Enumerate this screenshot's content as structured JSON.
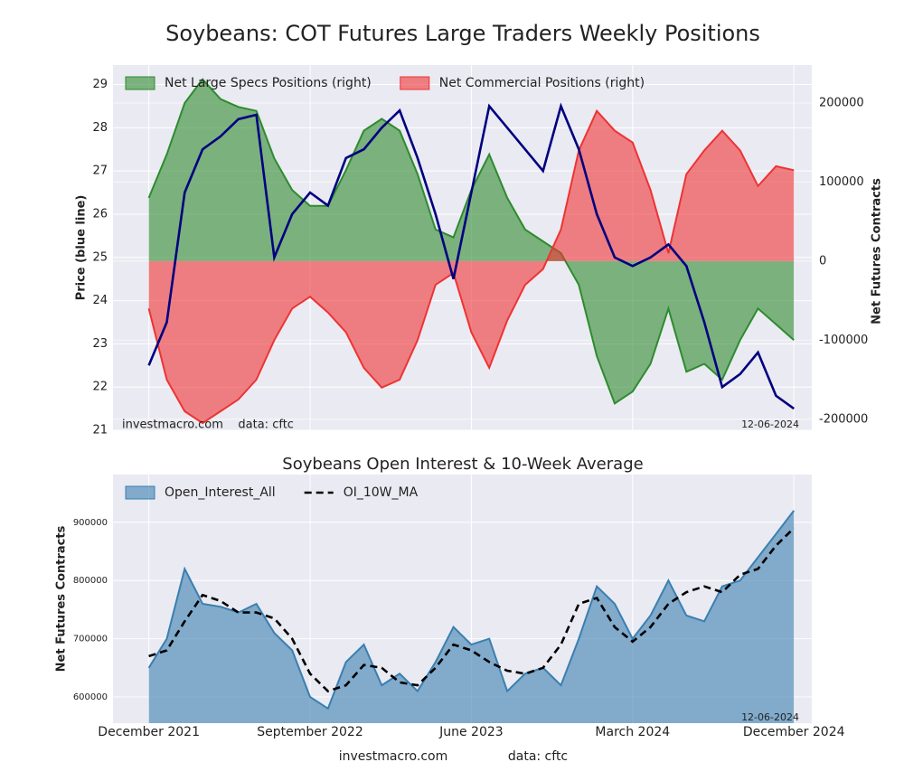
{
  "chart_data": [
    {
      "type": "area",
      "title": "Soybeans: COT Futures Large Traders Weekly Positions",
      "ylabel": "Price (blue line)",
      "y2label": "Net Futures Contracts",
      "annotation_left": "investmacro.com    data: cftc",
      "annotation_right": "12-06-2024",
      "legend": "upper left",
      "grid": true,
      "x": [
        "2021-12",
        "2022-01",
        "2022-02",
        "2022-03",
        "2022-04",
        "2022-05",
        "2022-06",
        "2022-07",
        "2022-08",
        "2022-09",
        "2022-10",
        "2022-11",
        "2022-12",
        "2023-01",
        "2023-02",
        "2023-03",
        "2023-04",
        "2023-05",
        "2023-06",
        "2023-07",
        "2023-08",
        "2023-09",
        "2023-10",
        "2023-11",
        "2023-12",
        "2024-01",
        "2024-02",
        "2024-03",
        "2024-04",
        "2024-05",
        "2024-06",
        "2024-07",
        "2024-08",
        "2024-09",
        "2024-10",
        "2024-11",
        "2024-12"
      ],
      "xlim": [
        "2021-10",
        "2025-01"
      ],
      "ylim": [
        21,
        29.45
      ],
      "yticks": [
        21,
        22,
        23,
        24,
        25,
        26,
        27,
        28,
        29
      ],
      "y2lim": [
        -214000,
        248000
      ],
      "y2ticks": [
        -200000,
        -100000,
        0,
        100000,
        200000
      ],
      "series": [
        {
          "name": "Net Large Specs Positions (right)",
          "color": "#2e8b2e",
          "fill": true,
          "axis": "y2",
          "values": [
            80000,
            135000,
            200000,
            230000,
            205000,
            195000,
            190000,
            130000,
            90000,
            70000,
            70000,
            115000,
            165000,
            180000,
            165000,
            110000,
            40000,
            30000,
            90000,
            135000,
            80000,
            40000,
            25000,
            10000,
            -30000,
            -120000,
            -180000,
            -165000,
            -130000,
            -60000,
            -140000,
            -130000,
            -150000,
            -100000,
            -60000,
            -80000,
            -100000
          ]
        },
        {
          "name": "Net Commercial Positions (right)",
          "color": "#ee3333",
          "fill": true,
          "axis": "y2",
          "values": [
            -60000,
            -150000,
            -190000,
            -205000,
            -190000,
            -175000,
            -150000,
            -100000,
            -60000,
            -45000,
            -65000,
            -90000,
            -135000,
            -160000,
            -150000,
            -100000,
            -30000,
            -15000,
            -90000,
            -135000,
            -75000,
            -30000,
            -10000,
            40000,
            140000,
            190000,
            165000,
            150000,
            90000,
            10000,
            110000,
            140000,
            165000,
            140000,
            95000,
            120000,
            115000
          ]
        },
        {
          "color": "#000080",
          "fill": false,
          "values": [
            22.5,
            23.5,
            26.5,
            27.5,
            27.8,
            28.2,
            28.3,
            25.0,
            26.0,
            26.5,
            26.2,
            27.3,
            27.5,
            28.0,
            28.4,
            27.3,
            26.0,
            24.5,
            26.5,
            28.5,
            28.0,
            27.5,
            27.0,
            28.5,
            27.5,
            26.0,
            25.0,
            24.8,
            25.0,
            25.3,
            24.8,
            23.5,
            22.0,
            22.3,
            22.8,
            21.8,
            21.5
          ]
        }
      ]
    },
    {
      "type": "area",
      "title": "Soybeans Open Interest & 10-Week Average",
      "ylabel": "Net Futures Contracts",
      "annotation_right": "12-06-2024",
      "footer_left": "investmacro.com",
      "footer_right": "data: cftc",
      "legend": "upper left",
      "grid": true,
      "x": [
        "2021-12",
        "2022-01",
        "2022-02",
        "2022-03",
        "2022-04",
        "2022-05",
        "2022-06",
        "2022-07",
        "2022-08",
        "2022-09",
        "2022-10",
        "2022-11",
        "2022-12",
        "2023-01",
        "2023-02",
        "2023-03",
        "2023-04",
        "2023-05",
        "2023-06",
        "2023-07",
        "2023-08",
        "2023-09",
        "2023-10",
        "2023-11",
        "2023-12",
        "2024-01",
        "2024-02",
        "2024-03",
        "2024-04",
        "2024-05",
        "2024-06",
        "2024-07",
        "2024-08",
        "2024-09",
        "2024-10",
        "2024-11",
        "2024-12"
      ],
      "xlim": [
        "2021-10",
        "2025-01"
      ],
      "xticks": [
        {
          "value": "2021-12",
          "label": "December 2021"
        },
        {
          "value": "2022-09",
          "label": "September 2022"
        },
        {
          "value": "2023-06",
          "label": "June 2023"
        },
        {
          "value": "2024-03",
          "label": "March 2024"
        },
        {
          "value": "2024-12",
          "label": "December 2024"
        }
      ],
      "ylim": [
        555000,
        982000
      ],
      "yticks": [
        600000,
        700000,
        800000,
        900000
      ],
      "series": [
        {
          "name": "Open_Interest_All",
          "color": "#3a7fb0",
          "fill": true,
          "values": [
            650000,
            700000,
            820000,
            760000,
            755000,
            745000,
            760000,
            710000,
            680000,
            600000,
            580000,
            660000,
            690000,
            620000,
            640000,
            610000,
            660000,
            720000,
            690000,
            700000,
            610000,
            640000,
            650000,
            620000,
            700000,
            790000,
            760000,
            700000,
            740000,
            800000,
            740000,
            730000,
            790000,
            800000,
            840000,
            880000,
            920000
          ]
        },
        {
          "name": "OI_10W_MA",
          "color": "#000000",
          "fill": false,
          "dash": true,
          "values": [
            670000,
            680000,
            730000,
            775000,
            765000,
            745000,
            745000,
            735000,
            700000,
            640000,
            610000,
            620000,
            655000,
            650000,
            625000,
            620000,
            650000,
            690000,
            680000,
            660000,
            645000,
            640000,
            650000,
            690000,
            760000,
            770000,
            720000,
            695000,
            720000,
            760000,
            780000,
            790000,
            780000,
            810000,
            820000,
            860000,
            890000
          ]
        }
      ]
    }
  ]
}
